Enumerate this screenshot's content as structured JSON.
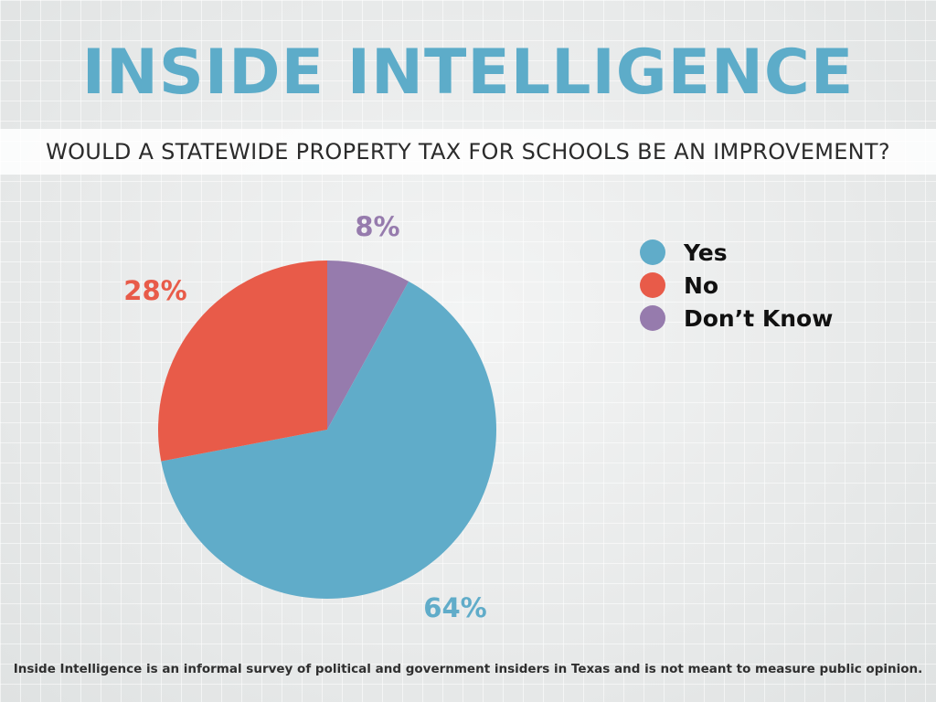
{
  "header": {
    "title": "INSIDE INTELLIGENCE",
    "question": "WOULD A STATEWIDE PROPERTY TAX FOR SCHOOLS BE AN IMPROVEMENT?"
  },
  "footnote": "Inside Intelligence is an informal survey of political and government insiders in Texas and is not meant to measure public opinion.",
  "chart_data": {
    "type": "pie",
    "title": "WOULD A STATEWIDE PROPERTY TAX FOR SCHOOLS BE AN IMPROVEMENT?",
    "legend_position": "top-right",
    "slices": [
      {
        "label": "Yes",
        "value": 64,
        "display": "64%",
        "color": "#60acc9"
      },
      {
        "label": "No",
        "value": 28,
        "display": "28%",
        "color": "#e85b49"
      },
      {
        "label": "Don’t Know",
        "value": 8,
        "display": "8%",
        "color": "#967bad"
      }
    ]
  }
}
